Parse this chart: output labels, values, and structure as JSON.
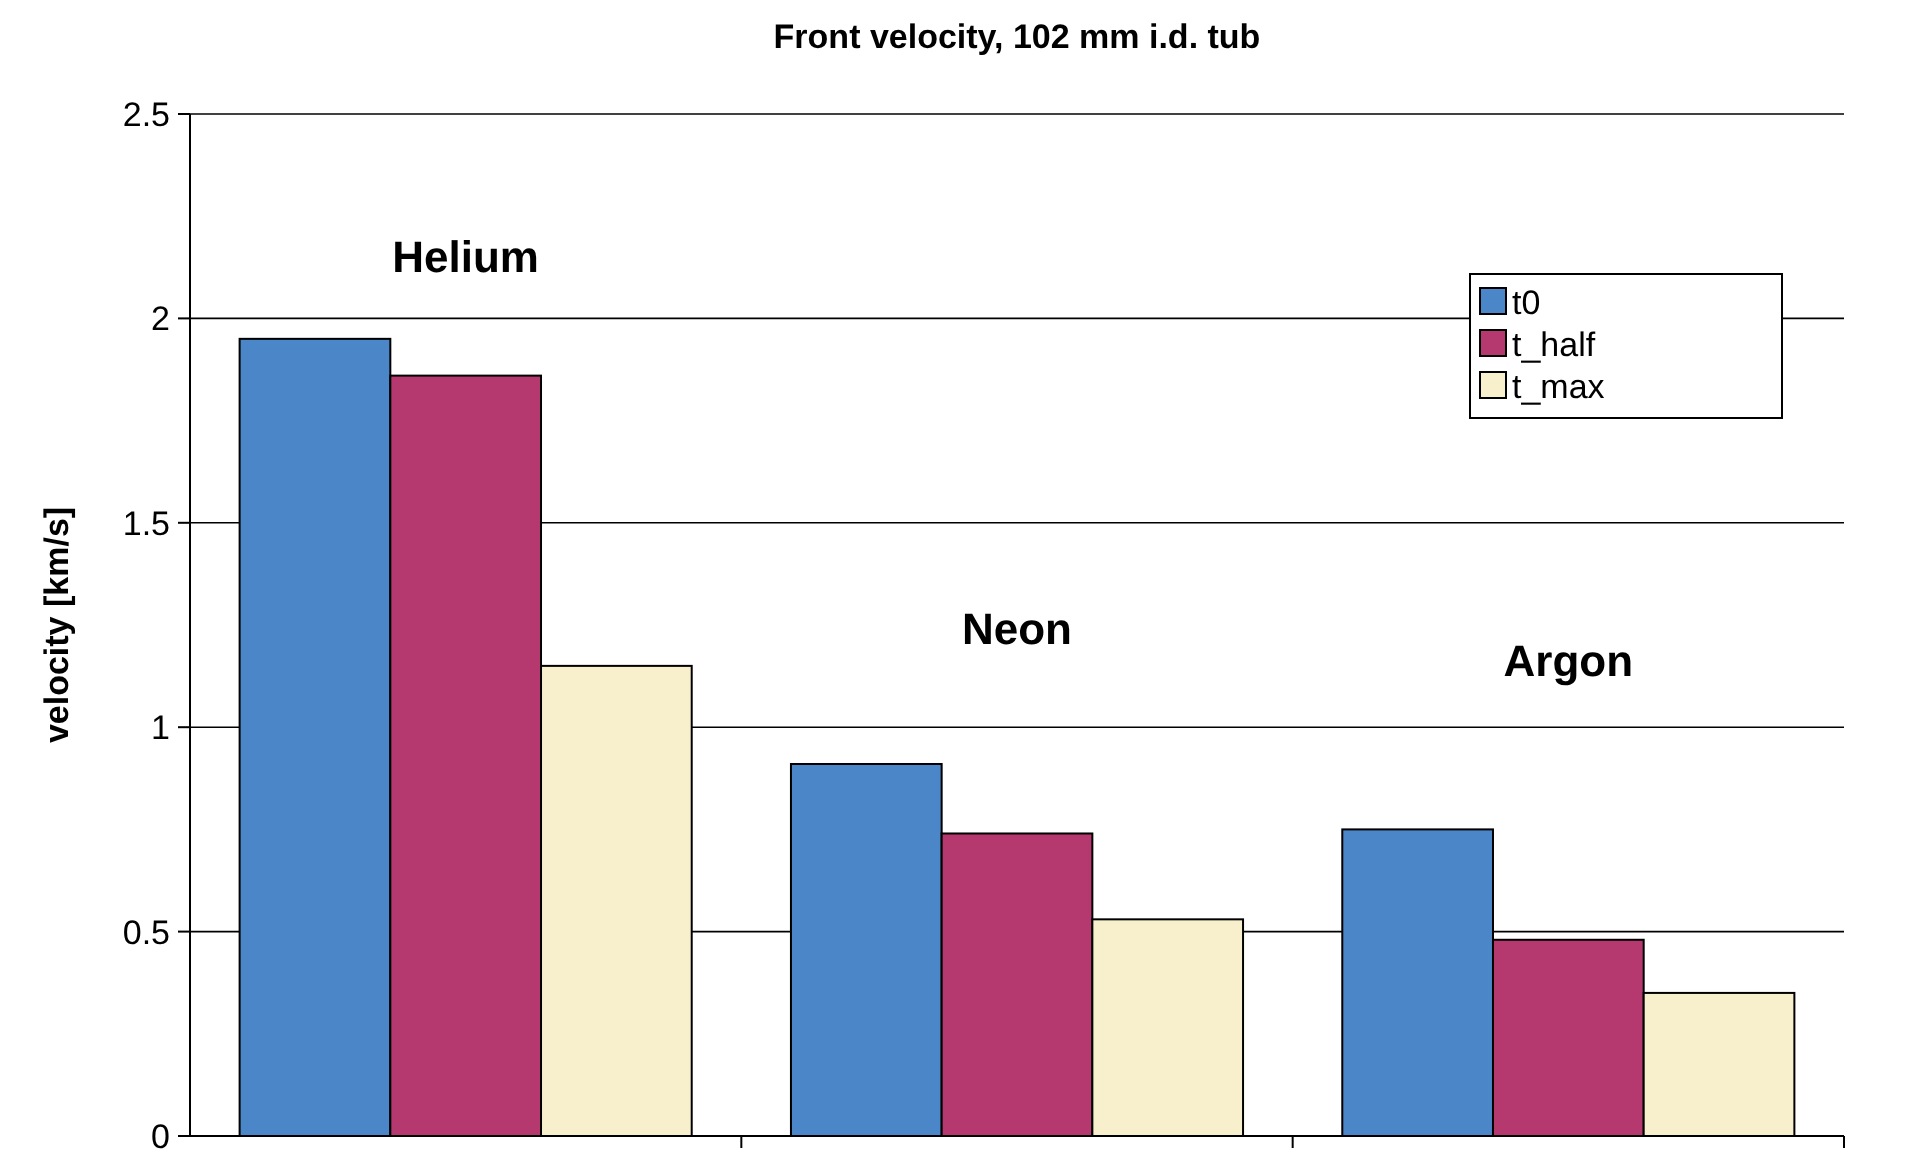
{
  "chart_data": {
    "type": "bar",
    "title": "Front velocity, 102 mm i.d. tub",
    "ylabel": "velocity [km/s]",
    "categories": [
      null,
      null,
      null
    ],
    "series": [
      {
        "name": "t0",
        "color": "#4a86c8",
        "values": [
          1.95,
          0.91,
          0.75
        ]
      },
      {
        "name": "t_half",
        "color": "#b5396e",
        "values": [
          1.86,
          0.74,
          0.48
        ]
      },
      {
        "name": "t_max",
        "color": "#f8f0cc",
        "values": [
          1.15,
          0.53,
          0.35
        ]
      }
    ],
    "annotations": [
      "Helium",
      "Neon",
      "Argon"
    ],
    "ylim": [
      0,
      2.5
    ],
    "yticks": [
      0,
      0.5,
      1,
      1.5,
      2,
      2.5
    ],
    "grid": "y",
    "legend": "top right"
  }
}
